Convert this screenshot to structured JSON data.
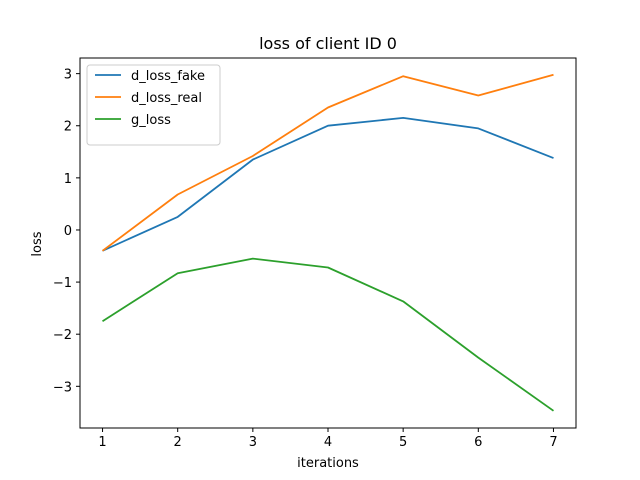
{
  "chart_data": {
    "type": "line",
    "title": "loss of client ID 0",
    "xlabel": "iterations",
    "ylabel": "loss",
    "x": [
      1,
      2,
      3,
      4,
      5,
      6,
      7
    ],
    "xlim": [
      0.7,
      7.3
    ],
    "ylim": [
      -3.8,
      3.3
    ],
    "xticks": [
      1,
      2,
      3,
      4,
      5,
      6,
      7
    ],
    "yticks": [
      -3,
      -2,
      -1,
      0,
      1,
      2,
      3
    ],
    "ytick_labels": [
      "−3",
      "−2",
      "−1",
      "0",
      "1",
      "2",
      "3"
    ],
    "grid": false,
    "legend_position": "top-left",
    "series": [
      {
        "name": "d_loss_fake",
        "color": "#1f77b4",
        "values": [
          -0.4,
          0.25,
          1.35,
          2.0,
          2.15,
          1.95,
          1.38
        ]
      },
      {
        "name": "d_loss_real",
        "color": "#ff7f0e",
        "values": [
          -0.4,
          0.68,
          1.42,
          2.35,
          2.95,
          2.58,
          2.98
        ]
      },
      {
        "name": "g_loss",
        "color": "#2ca02c",
        "values": [
          -1.75,
          -0.83,
          -0.55,
          -0.72,
          -1.37,
          -2.45,
          -3.47
        ]
      }
    ]
  }
}
